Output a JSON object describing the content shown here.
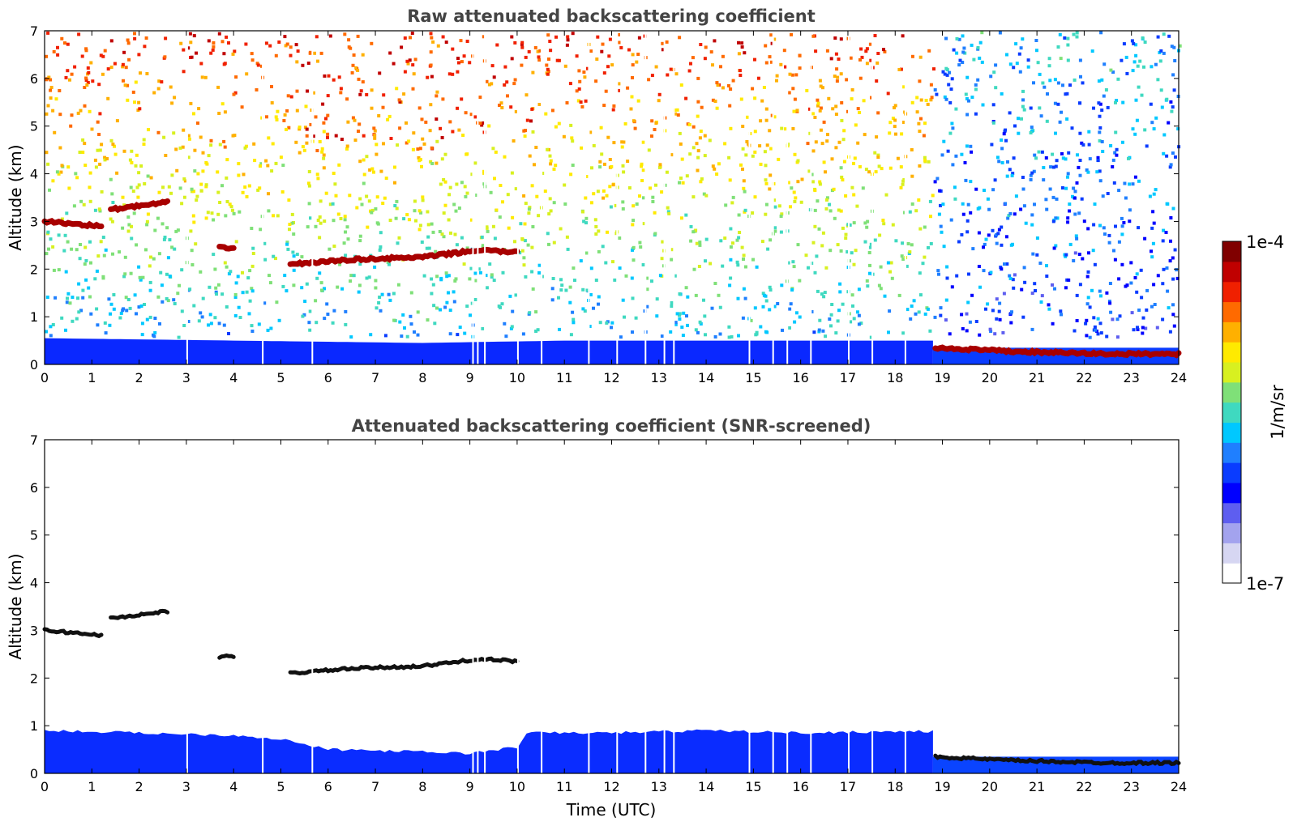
{
  "colors": {
    "colormap": [
      "#ffffff",
      "#d6d6f2",
      "#a3a3ee",
      "#5e5ef0",
      "#0000ff",
      "#0a3cff",
      "#1f7fff",
      "#00c8ff",
      "#3fd9c0",
      "#7fe078",
      "#d8f020",
      "#ffea00",
      "#ffb000",
      "#ff6a00",
      "#f02000",
      "#c00000",
      "#800000"
    ],
    "axis": "#000000",
    "title": "#444444",
    "layer_black": "#111111"
  },
  "chart_data": [
    {
      "type": "heatmap",
      "title": "Raw attenuated backscattering coefficient",
      "xlabel": "",
      "ylabel": "Altitude (km)",
      "xlim": [
        0,
        24
      ],
      "ylim": [
        0,
        7
      ],
      "x_ticks": [
        "0",
        "1",
        "2",
        "3",
        "4",
        "5",
        "6",
        "7",
        "8",
        "9",
        "10",
        "11",
        "12",
        "13",
        "14",
        "15",
        "16",
        "17",
        "18",
        "19",
        "20",
        "21",
        "22",
        "23",
        "24"
      ],
      "y_ticks": [
        "0",
        "1",
        "2",
        "3",
        "4",
        "5",
        "6",
        "7"
      ],
      "features": {
        "boundary_layer": {
          "t": [
            0,
            4,
            8,
            11,
            14,
            17,
            18.8
          ],
          "top_km": [
            0.55,
            0.5,
            0.45,
            0.5,
            0.5,
            0.5,
            0.5
          ]
        },
        "cloud_layers_km": [
          {
            "t": [
              0,
              1.2
            ],
            "alt": [
              3.0,
              2.9
            ]
          },
          {
            "t": [
              1.4,
              2.6
            ],
            "alt": [
              3.25,
              3.4
            ]
          },
          {
            "t": [
              3.7,
              4.0
            ],
            "alt": [
              2.45,
              2.45
            ]
          },
          {
            "t": [
              5.2,
              6.5,
              8.0,
              9.2,
              10.0
            ],
            "alt": [
              2.1,
              2.2,
              2.25,
              2.4,
              2.35
            ]
          },
          {
            "t": [
              18.85,
              20.5,
              22.5,
              24
            ],
            "alt": [
              0.35,
              0.27,
              0.22,
              0.22
            ]
          }
        ]
      }
    },
    {
      "type": "heatmap",
      "title": "Attenuated backscattering coefficient (SNR-screened)",
      "xlabel": "Time (UTC)",
      "ylabel": "Altitude (km)",
      "xlim": [
        0,
        24
      ],
      "ylim": [
        0,
        7
      ],
      "x_ticks": [
        "0",
        "1",
        "2",
        "3",
        "4",
        "5",
        "6",
        "7",
        "8",
        "9",
        "10",
        "11",
        "12",
        "13",
        "14",
        "15",
        "16",
        "17",
        "18",
        "19",
        "20",
        "21",
        "22",
        "23",
        "24"
      ],
      "y_ticks": [
        "0",
        "1",
        "2",
        "3",
        "4",
        "5",
        "6",
        "7"
      ],
      "features": {
        "signal_top_km": {
          "t": [
            0,
            2,
            4,
            5,
            6,
            7,
            8,
            9,
            10,
            10.2,
            12,
            14,
            16,
            18,
            18.8
          ],
          "alt": [
            0.9,
            0.85,
            0.8,
            0.72,
            0.5,
            0.48,
            0.45,
            0.42,
            0.55,
            0.85,
            0.85,
            0.9,
            0.85,
            0.88,
            0.88
          ]
        },
        "after_19_top_km": 0.35
      }
    }
  ],
  "colorbar": {
    "label": "1/m/sr",
    "max_label": "1e-4",
    "min_label": "1e-7",
    "scale": "log"
  }
}
